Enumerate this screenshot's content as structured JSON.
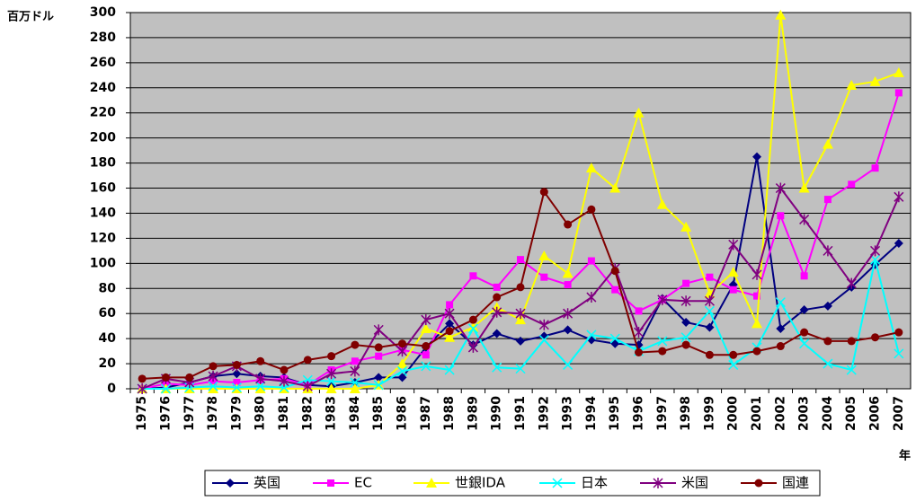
{
  "chart_data": {
    "type": "line",
    "ylabel": "百万ドル",
    "xlabel": "年",
    "categories": [
      "1975",
      "1976",
      "1977",
      "1978",
      "1979",
      "1980",
      "1981",
      "1982",
      "1983",
      "1984",
      "1985",
      "1986",
      "1987",
      "1988",
      "1989",
      "1990",
      "1991",
      "1992",
      "1993",
      "1994",
      "1995",
      "1996",
      "1997",
      "1998",
      "1999",
      "2000",
      "2001",
      "2002",
      "2003",
      "2004",
      "2005",
      "2006",
      "2007"
    ],
    "ylim": [
      0,
      300
    ],
    "yticks": [
      0,
      20,
      40,
      60,
      80,
      100,
      120,
      140,
      160,
      180,
      200,
      220,
      240,
      260,
      280,
      300
    ],
    "grid": true,
    "legend": "bottom",
    "series": [
      {
        "name": "英国",
        "color": "#000080",
        "marker": "diamond",
        "values": [
          0,
          1,
          5,
          10,
          12,
          10,
          9,
          3,
          2,
          5,
          9,
          9,
          33,
          52,
          35,
          44,
          38,
          42,
          47,
          39,
          36,
          35,
          72,
          53,
          49,
          83,
          185,
          48,
          63,
          66,
          81,
          99,
          116
        ]
      },
      {
        "name": "EC",
        "color": "#ff00ff",
        "marker": "square",
        "values": [
          0,
          4,
          3,
          6,
          5,
          7,
          8,
          3,
          15,
          22,
          26,
          31,
          27,
          67,
          90,
          81,
          103,
          89,
          83,
          102,
          79,
          62,
          71,
          84,
          89,
          79,
          74,
          138,
          90,
          151,
          163,
          176,
          236
        ]
      },
      {
        "name": "世銀IDA",
        "color": "#ffff00",
        "marker": "triangle",
        "values": [
          0,
          0,
          0,
          0,
          0,
          0,
          0,
          0,
          0,
          0,
          3,
          20,
          48,
          41,
          49,
          65,
          55,
          106,
          92,
          176,
          160,
          220,
          147,
          129,
          76,
          93,
          52,
          298,
          160,
          195,
          242,
          245,
          252
        ]
      },
      {
        "name": "日本",
        "color": "#00ffff",
        "marker": "x",
        "values": [
          0,
          0,
          1,
          2,
          1,
          2,
          1,
          7,
          6,
          5,
          3,
          14,
          18,
          15,
          48,
          17,
          16,
          39,
          19,
          43,
          40,
          30,
          38,
          41,
          62,
          19,
          33,
          69,
          36,
          20,
          15,
          103,
          28
        ]
      },
      {
        "name": "米国",
        "color": "#800080",
        "marker": "star",
        "values": [
          0,
          8,
          5,
          10,
          18,
          8,
          6,
          2,
          12,
          14,
          47,
          30,
          55,
          60,
          33,
          61,
          60,
          51,
          60,
          73,
          96,
          45,
          71,
          70,
          70,
          115,
          91,
          160,
          135,
          110,
          84,
          110,
          153
        ]
      },
      {
        "name": "国連",
        "color": "#800000",
        "marker": "circle",
        "values": [
          8,
          9,
          9,
          18,
          19,
          22,
          15,
          23,
          26,
          35,
          33,
          36,
          34,
          46,
          55,
          73,
          81,
          157,
          131,
          143,
          94,
          29,
          30,
          35,
          27,
          27,
          30,
          34,
          45,
          38,
          38,
          41,
          45
        ]
      }
    ]
  }
}
